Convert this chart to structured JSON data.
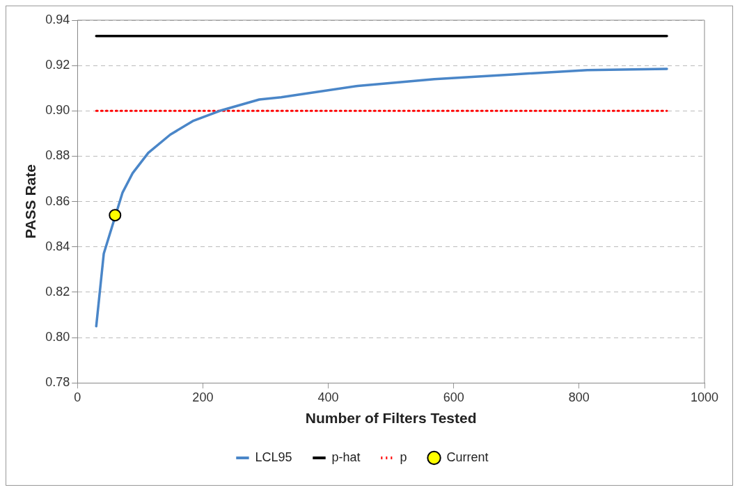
{
  "chart_data": {
    "type": "line",
    "xlabel": "Number of Filters Tested",
    "ylabel": "PASS Rate",
    "xlim": [
      0,
      1000
    ],
    "xticks": [
      0,
      200,
      400,
      600,
      800,
      1000
    ],
    "ylim": [
      0.78,
      0.94
    ],
    "yticks": [
      {
        "value": 0.78,
        "label": "0.78"
      },
      {
        "value": 0.8,
        "label": "0.80"
      },
      {
        "value": 0.82,
        "label": "0.82"
      },
      {
        "value": 0.84,
        "label": "0.84"
      },
      {
        "value": 0.86,
        "label": "0.86"
      },
      {
        "value": 0.88,
        "label": "0.88"
      },
      {
        "value": 0.9,
        "label": "0.90"
      },
      {
        "value": 0.92,
        "label": "0.92"
      },
      {
        "value": 0.94,
        "label": "0.94"
      }
    ],
    "grid": "y",
    "legend": "bottom",
    "series": [
      {
        "name": "LCL95",
        "type": "line",
        "color": "#4a86c8",
        "marker": "none",
        "line_style": "solid",
        "x": [
          30,
          42,
          72,
          88,
          113,
          148,
          184,
          227,
          290,
          325,
          349,
          447,
          569,
          690,
          813,
          940
        ],
        "values": [
          0.805,
          0.837,
          0.864,
          0.8725,
          0.8815,
          0.8895,
          0.8955,
          0.9,
          0.905,
          0.906,
          0.907,
          0.911,
          0.914,
          0.916,
          0.918,
          0.9185
        ]
      },
      {
        "name": "p-hat",
        "type": "line",
        "color": "#000000",
        "marker": "none",
        "line_style": "solid",
        "x": [
          30,
          940
        ],
        "values": [
          0.933,
          0.933
        ]
      },
      {
        "name": "p",
        "type": "line",
        "color": "#ff0000",
        "marker": "none",
        "line_style": "dotted",
        "x": [
          30,
          940
        ],
        "values": [
          0.9,
          0.9
        ]
      },
      {
        "name": "Current",
        "type": "scatter",
        "color": "#ffff00",
        "marker": "circle",
        "x": [
          60
        ],
        "values": [
          0.854
        ]
      }
    ]
  }
}
